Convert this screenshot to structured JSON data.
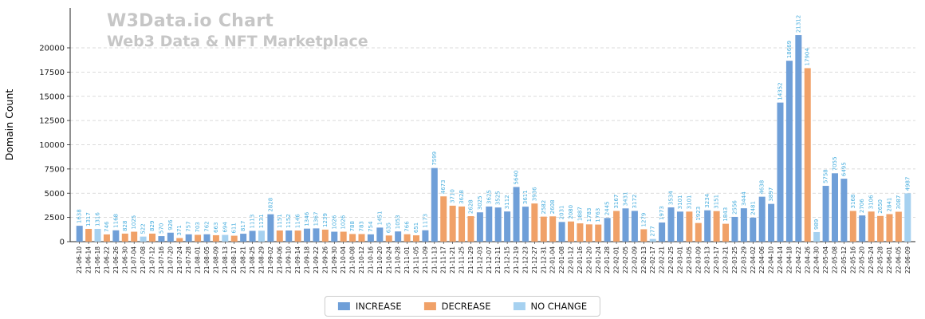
{
  "chart_data": {
    "type": "bar",
    "title": "W3Data.io Chart",
    "subtitle": "Web3 Data & NFT Marketplace",
    "xlabel": "",
    "ylabel": "Domain Count",
    "ylim": [
      0,
      22500
    ],
    "yticks": [
      0,
      2500,
      5000,
      7500,
      10000,
      12500,
      15000,
      17500,
      20000
    ],
    "grid": "dashed-horizontal",
    "label_color": "#49aede",
    "colors": {
      "increase": "#6f9fd8",
      "decrease": "#f0a168",
      "nochange": "#a6d1f0"
    },
    "legend": {
      "position": "bottom-center",
      "entries": [
        {
          "label": "INCREASE",
          "color": "#6f9fd8"
        },
        {
          "label": "DECREASE",
          "color": "#f0a168"
        },
        {
          "label": "NO CHANGE",
          "color": "#a6d1f0"
        }
      ]
    },
    "bars": [
      {
        "date": "21-06-10",
        "value": 1638,
        "type": "increase"
      },
      {
        "date": "21-06-14",
        "value": 1317,
        "type": "decrease"
      },
      {
        "date": "21-06-18",
        "value": 1316,
        "type": "nochange"
      },
      {
        "date": "21-06-22",
        "value": 746,
        "type": "decrease"
      },
      {
        "date": "21-06-26",
        "value": 1168,
        "type": "increase"
      },
      {
        "date": "21-06-30",
        "value": 828,
        "type": "decrease"
      },
      {
        "date": "21-07-04",
        "value": 1025,
        "type": "decrease"
      },
      {
        "date": "21-07-08",
        "value": 522,
        "type": "nochange"
      },
      {
        "date": "21-07-12",
        "value": 829,
        "type": "decrease"
      },
      {
        "date": "21-07-16",
        "value": 570,
        "type": "increase"
      },
      {
        "date": "21-07-20",
        "value": 926,
        "type": "increase"
      },
      {
        "date": "21-07-24",
        "value": 371,
        "type": "decrease"
      },
      {
        "date": "21-07-28",
        "value": 757,
        "type": "increase"
      },
      {
        "date": "21-08-01",
        "value": 703,
        "type": "decrease"
      },
      {
        "date": "21-08-05",
        "value": 762,
        "type": "increase"
      },
      {
        "date": "21-08-09",
        "value": 663,
        "type": "decrease"
      },
      {
        "date": "21-08-13",
        "value": 694,
        "type": "nochange"
      },
      {
        "date": "21-08-17",
        "value": 611,
        "type": "decrease"
      },
      {
        "date": "21-08-21",
        "value": 817,
        "type": "increase"
      },
      {
        "date": "21-08-25",
        "value": 1113,
        "type": "increase"
      },
      {
        "date": "21-08-29",
        "value": 1131,
        "type": "nochange"
      },
      {
        "date": "21-09-02",
        "value": 2828,
        "type": "increase"
      },
      {
        "date": "21-09-06",
        "value": 1151,
        "type": "decrease"
      },
      {
        "date": "21-09-10",
        "value": 1152,
        "type": "increase"
      },
      {
        "date": "21-09-14",
        "value": 1146,
        "type": "decrease"
      },
      {
        "date": "21-09-18",
        "value": 1346,
        "type": "increase"
      },
      {
        "date": "21-09-22",
        "value": 1367,
        "type": "increase"
      },
      {
        "date": "21-09-26",
        "value": 1239,
        "type": "decrease"
      },
      {
        "date": "21-09-30",
        "value": 1026,
        "type": "increase"
      },
      {
        "date": "21-10-04",
        "value": 1026,
        "type": "decrease"
      },
      {
        "date": "21-10-08",
        "value": 788,
        "type": "decrease"
      },
      {
        "date": "21-10-12",
        "value": 783,
        "type": "decrease"
      },
      {
        "date": "21-10-16",
        "value": 754,
        "type": "increase"
      },
      {
        "date": "21-10-20",
        "value": 1451,
        "type": "increase"
      },
      {
        "date": "21-10-24",
        "value": 635,
        "type": "decrease"
      },
      {
        "date": "21-10-28",
        "value": 1053,
        "type": "increase"
      },
      {
        "date": "21-11-01",
        "value": 766,
        "type": "decrease"
      },
      {
        "date": "21-11-05",
        "value": 651,
        "type": "decrease"
      },
      {
        "date": "21-11-09",
        "value": 1173,
        "type": "increase"
      },
      {
        "date": "21-11-13",
        "value": 7599,
        "type": "increase"
      },
      {
        "date": "21-11-17",
        "value": 4673,
        "type": "decrease"
      },
      {
        "date": "21-11-21",
        "value": 3710,
        "type": "decrease"
      },
      {
        "date": "21-11-25",
        "value": 3628,
        "type": "decrease"
      },
      {
        "date": "21-11-29",
        "value": 2628,
        "type": "decrease"
      },
      {
        "date": "21-12-03",
        "value": 3025,
        "type": "increase"
      },
      {
        "date": "21-12-07",
        "value": 3625,
        "type": "increase"
      },
      {
        "date": "21-12-11",
        "value": 3525,
        "type": "increase"
      },
      {
        "date": "21-12-15",
        "value": 3112,
        "type": "increase"
      },
      {
        "date": "21-12-19",
        "value": 5640,
        "type": "increase"
      },
      {
        "date": "21-12-23",
        "value": 3611,
        "type": "increase"
      },
      {
        "date": "21-12-27",
        "value": 3936,
        "type": "decrease"
      },
      {
        "date": "21-12-31",
        "value": 2582,
        "type": "decrease"
      },
      {
        "date": "22-01-04",
        "value": 2608,
        "type": "decrease"
      },
      {
        "date": "22-01-08",
        "value": 2031,
        "type": "increase"
      },
      {
        "date": "22-01-12",
        "value": 2080,
        "type": "decrease"
      },
      {
        "date": "22-01-16",
        "value": 1887,
        "type": "decrease"
      },
      {
        "date": "22-01-20",
        "value": 1783,
        "type": "decrease"
      },
      {
        "date": "22-01-24",
        "value": 1763,
        "type": "decrease"
      },
      {
        "date": "22-01-28",
        "value": 2445,
        "type": "increase"
      },
      {
        "date": "22-02-01",
        "value": 3167,
        "type": "decrease"
      },
      {
        "date": "22-02-05",
        "value": 3431,
        "type": "increase"
      },
      {
        "date": "22-02-09",
        "value": 3172,
        "type": "increase"
      },
      {
        "date": "22-02-13",
        "value": 1279,
        "type": "decrease"
      },
      {
        "date": "22-02-17",
        "value": 277,
        "type": "nochange"
      },
      {
        "date": "22-02-21",
        "value": 1973,
        "type": "increase"
      },
      {
        "date": "22-02-25",
        "value": 3534,
        "type": "increase"
      },
      {
        "date": "22-03-01",
        "value": 3101,
        "type": "increase"
      },
      {
        "date": "22-03-05",
        "value": 3101,
        "type": "decrease"
      },
      {
        "date": "22-03-09",
        "value": 1923,
        "type": "decrease"
      },
      {
        "date": "22-03-13",
        "value": 3234,
        "type": "increase"
      },
      {
        "date": "22-03-17",
        "value": 3151,
        "type": "decrease"
      },
      {
        "date": "22-03-21",
        "value": 1843,
        "type": "decrease"
      },
      {
        "date": "22-03-25",
        "value": 2556,
        "type": "increase"
      },
      {
        "date": "22-03-29",
        "value": 3444,
        "type": "increase"
      },
      {
        "date": "22-04-02",
        "value": 2481,
        "type": "increase"
      },
      {
        "date": "22-04-06",
        "value": 4638,
        "type": "increase"
      },
      {
        "date": "22-04-10",
        "value": 3897,
        "type": "increase"
      },
      {
        "date": "22-04-14",
        "value": 14352,
        "type": "increase"
      },
      {
        "date": "22-04-18",
        "value": 18669,
        "type": "increase"
      },
      {
        "date": "22-04-22",
        "value": 21312,
        "type": "increase"
      },
      {
        "date": "22-04-26",
        "value": 17904,
        "type": "decrease"
      },
      {
        "date": "22-04-30",
        "value": 989,
        "type": "nochange"
      },
      {
        "date": "22-05-04",
        "value": 5758,
        "type": "increase"
      },
      {
        "date": "22-05-08",
        "value": 7055,
        "type": "increase"
      },
      {
        "date": "22-05-12",
        "value": 6495,
        "type": "increase"
      },
      {
        "date": "22-05-16",
        "value": 3168,
        "type": "decrease"
      },
      {
        "date": "22-05-20",
        "value": 2706,
        "type": "increase"
      },
      {
        "date": "22-05-24",
        "value": 3106,
        "type": "decrease"
      },
      {
        "date": "22-05-28",
        "value": 2650,
        "type": "decrease"
      },
      {
        "date": "22-06-01",
        "value": 2841,
        "type": "decrease"
      },
      {
        "date": "22-06-05",
        "value": 3087,
        "type": "decrease"
      },
      {
        "date": "22-06-09",
        "value": 4987,
        "type": "nochange"
      }
    ]
  }
}
